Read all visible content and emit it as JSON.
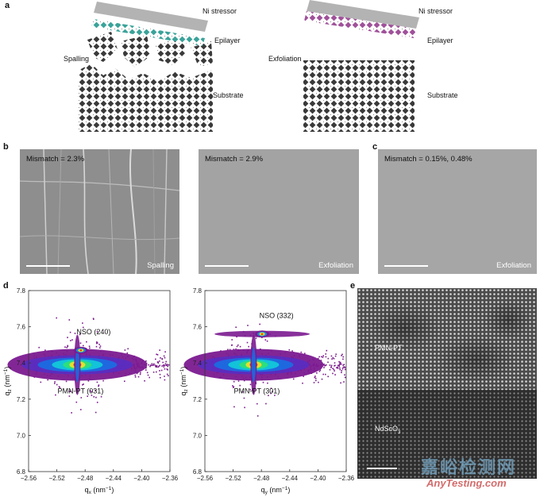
{
  "panels": {
    "a": {
      "label": "a",
      "left": {
        "stressor": "Ni stressor",
        "epilayer": "Epilayer",
        "process": "Spalling",
        "substrate": "Substrate"
      },
      "right": {
        "stressor": "Ni stressor",
        "epilayer": "Epilayer",
        "process": "Exfoliation",
        "substrate": "Substrate"
      },
      "colors": {
        "stressor": "#b3b3b3",
        "epilayer_left": "#3aa39a",
        "epilayer_right": "#a0519a",
        "substrate": "#3a3a3a"
      }
    },
    "b": {
      "label": "b",
      "images": [
        {
          "mismatch": "Mismatch = 2.3%",
          "process": "Spalling"
        },
        {
          "mismatch": "Mismatch = 2.9%",
          "process": "Exfoliation"
        }
      ]
    },
    "c": {
      "label": "c",
      "image": {
        "mismatch": "Mismatch = 0.15%, 0.48%",
        "process": "Exfoliation"
      }
    },
    "d": {
      "label": "d"
    },
    "e": {
      "label": "e",
      "layers": {
        "top": "PMN-PT",
        "bottom": "NdScO",
        "bottom_sub": "3"
      }
    }
  },
  "chart_data": [
    {
      "type": "heatmap",
      "xlabel": "q",
      "xlabel_sub": "x",
      "xlabel_unit": " (nm",
      "xlabel_unit_exp": "−1",
      "xlabel_close": ")",
      "ylabel": "q",
      "ylabel_sub": "z",
      "ylabel_unit": " (nm",
      "ylabel_unit_exp": "−1",
      "ylabel_close": ")",
      "xlim": [
        -2.56,
        -2.36
      ],
      "ylim": [
        6.8,
        7.8
      ],
      "xticks": [
        -2.56,
        -2.52,
        -2.48,
        -2.44,
        -2.4,
        -2.36
      ],
      "xtick_labels": [
        "−2.56",
        "−2.52",
        "−2.48",
        "−2.44",
        "−2.40",
        "−2.36"
      ],
      "yticks": [
        6.8,
        7.0,
        7.2,
        7.4,
        7.6,
        7.8
      ],
      "ytick_labels": [
        "6.8",
        "7.0",
        "7.2",
        "7.4",
        "7.6",
        "7.8"
      ],
      "peaks": [
        {
          "name": "NSO (240)",
          "x": -2.486,
          "y": 7.47
        },
        {
          "name": "PMN-PT (031)",
          "x": -2.491,
          "y": 7.39
        }
      ]
    },
    {
      "type": "heatmap",
      "xlabel": "q",
      "xlabel_sub": "y",
      "xlabel_unit": " (nm",
      "xlabel_unit_exp": "−1",
      "xlabel_close": ")",
      "ylabel": "q",
      "ylabel_sub": "z",
      "ylabel_unit": " (nm",
      "ylabel_unit_exp": "−1",
      "ylabel_close": ")",
      "xlim": [
        -2.56,
        -2.36
      ],
      "ylim": [
        6.8,
        7.8
      ],
      "xticks": [
        -2.56,
        -2.52,
        -2.48,
        -2.44,
        -2.4,
        -2.36
      ],
      "xtick_labels": [
        "−2.56",
        "−2.52",
        "−2.48",
        "−2.44",
        "−2.40",
        "−2.36"
      ],
      "yticks": [
        6.8,
        7.0,
        7.2,
        7.4,
        7.6,
        7.8
      ],
      "ytick_labels": [
        "6.8",
        "7.0",
        "7.2",
        "7.4",
        "7.6",
        "7.8"
      ],
      "peaks": [
        {
          "name": "NSO (332)",
          "x": -2.479,
          "y": 7.56
        },
        {
          "name": "PMN-PT (301)",
          "x": -2.491,
          "y": 7.39
        }
      ]
    }
  ],
  "watermark": {
    "cn": "嘉峪检测网",
    "en": "AnyTesting.com"
  }
}
